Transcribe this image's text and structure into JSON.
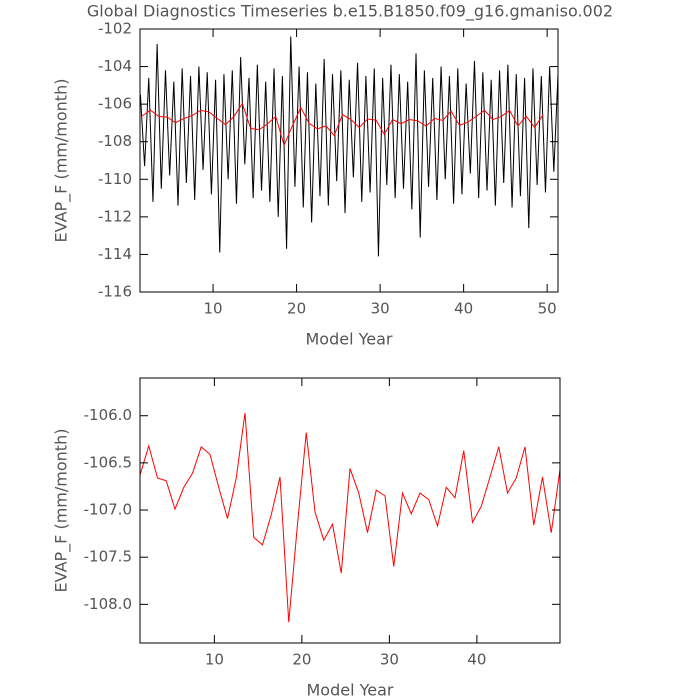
{
  "chart_data": [
    {
      "type": "line",
      "title": "Global Diagnostics Timeseries b.e15.B1850.f09_g16.gmaniso.002",
      "x_label": "Model Year",
      "y_label": "EVAP_F (mm/month)",
      "xlim": [
        1.25,
        51.3
      ],
      "ylim": [
        -116,
        -102
      ],
      "xticks": [
        10,
        20,
        30,
        40,
        50
      ],
      "yticks": [
        -116,
        -114,
        -112,
        -110,
        -108,
        -106,
        -104,
        -102
      ],
      "series": [
        {
          "color": "#000000",
          "x": [
            1.3,
            1.8,
            2.3,
            2.8,
            3.3,
            3.8,
            4.3,
            4.8,
            5.3,
            5.8,
            6.3,
            6.8,
            7.3,
            7.8,
            8.3,
            8.8,
            9.3,
            9.8,
            10.3,
            10.8,
            11.3,
            11.8,
            12.3,
            12.8,
            13.3,
            13.8,
            14.3,
            14.8,
            15.3,
            15.8,
            16.3,
            16.8,
            17.3,
            17.8,
            18.3,
            18.8,
            19.3,
            19.8,
            20.3,
            20.8,
            21.3,
            21.8,
            22.3,
            22.8,
            23.3,
            23.8,
            24.3,
            24.8,
            25.3,
            25.8,
            26.3,
            26.8,
            27.3,
            27.8,
            28.3,
            28.8,
            29.3,
            29.8,
            30.3,
            30.8,
            31.3,
            31.8,
            32.3,
            32.8,
            33.3,
            33.8,
            34.3,
            34.8,
            35.3,
            35.8,
            36.3,
            36.8,
            37.3,
            37.8,
            38.3,
            38.8,
            39.3,
            39.8,
            40.3,
            40.8,
            41.3,
            41.8,
            42.3,
            42.8,
            43.3,
            43.8,
            44.3,
            44.8,
            45.3,
            45.8,
            46.3,
            46.8,
            47.3,
            47.8,
            48.3,
            48.8,
            49.3,
            49.8,
            50.3,
            50.8,
            51.3
          ],
          "values": [
            -105.5,
            -109.3,
            -104.6,
            -111.2,
            -102.8,
            -110.5,
            -104.2,
            -109.8,
            -104.8,
            -111.4,
            -104.1,
            -110.2,
            -104.5,
            -111.1,
            -104.0,
            -109.5,
            -104.3,
            -110.8,
            -104.7,
            -113.9,
            -104.4,
            -110.0,
            -104.2,
            -111.3,
            -103.5,
            -109.2,
            -104.6,
            -111.0,
            -103.9,
            -110.6,
            -104.8,
            -111.2,
            -104.1,
            -112.0,
            -104.5,
            -113.7,
            -102.4,
            -110.4,
            -104.0,
            -111.5,
            -104.3,
            -112.3,
            -104.9,
            -110.9,
            -103.6,
            -111.4,
            -104.4,
            -110.1,
            -104.2,
            -111.8,
            -104.7,
            -109.9,
            -103.8,
            -111.2,
            -104.5,
            -110.7,
            -104.1,
            -114.1,
            -104.6,
            -110.3,
            -103.9,
            -111.0,
            -104.4,
            -110.5,
            -104.8,
            -111.6,
            -103.3,
            -113.1,
            -104.2,
            -110.4,
            -104.6,
            -111.1,
            -104.0,
            -110.0,
            -104.5,
            -111.3,
            -104.1,
            -110.8,
            -104.9,
            -109.7,
            -103.7,
            -111.0,
            -104.3,
            -110.6,
            -104.7,
            -111.4,
            -104.2,
            -110.2,
            -103.9,
            -111.5,
            -104.4,
            -110.9,
            -104.6,
            -112.6,
            -104.1,
            -110.3,
            -104.5,
            -110.7,
            -104.0,
            -109.6,
            -104.4
          ]
        },
        {
          "color": "#ff0000",
          "x": [
            1.5,
            2.5,
            3.5,
            4.5,
            5.5,
            6.5,
            7.5,
            8.5,
            9.5,
            10.5,
            11.5,
            12.5,
            13.5,
            14.5,
            15.5,
            16.5,
            17.5,
            18.5,
            19.5,
            20.5,
            21.5,
            22.5,
            23.5,
            24.5,
            25.5,
            26.5,
            27.5,
            28.5,
            29.5,
            30.5,
            31.5,
            32.5,
            33.5,
            34.5,
            35.5,
            36.5,
            37.5,
            38.5,
            39.5,
            40.5,
            41.5,
            42.5,
            43.5,
            44.5,
            45.5,
            46.5,
            47.5,
            48.5,
            49.5
          ],
          "values": [
            -106.63,
            -106.32,
            -106.66,
            -106.69,
            -106.99,
            -106.76,
            -106.61,
            -106.33,
            -106.41,
            -106.76,
            -107.09,
            -106.66,
            -105.97,
            -107.29,
            -107.37,
            -107.05,
            -106.65,
            -108.19,
            -107.15,
            -106.18,
            -107.02,
            -107.32,
            -107.15,
            -107.67,
            -106.56,
            -106.82,
            -107.24,
            -106.79,
            -106.85,
            -107.6,
            -106.82,
            -107.04,
            -106.82,
            -106.89,
            -107.17,
            -106.76,
            -106.87,
            -106.37,
            -107.13,
            -106.96,
            -106.65,
            -106.33,
            -106.82,
            -106.66,
            -106.33,
            -107.16,
            -106.65,
            -107.24,
            -106.57
          ]
        }
      ]
    },
    {
      "type": "line",
      "x_label": "Model Year",
      "y_label": "EVAP_F (mm/month)",
      "xlim": [
        1.5,
        49.5
      ],
      "ylim": [
        -108.41,
        -105.6
      ],
      "xticks": [
        10,
        20,
        30,
        40
      ],
      "yticks": [
        {
          "value": -108,
          "label": "-108.0"
        },
        -107.5,
        {
          "value": -107,
          "label": "-107.0"
        },
        -106.5,
        {
          "value": -106,
          "label": "-106.0"
        }
      ],
      "series": [
        {
          "color": "#ff0000",
          "x": [
            1.5,
            2.5,
            3.5,
            4.5,
            5.5,
            6.5,
            7.5,
            8.5,
            9.5,
            10.5,
            11.5,
            12.5,
            13.5,
            14.5,
            15.5,
            16.5,
            17.5,
            18.5,
            19.5,
            20.5,
            21.5,
            22.5,
            23.5,
            24.5,
            25.5,
            26.5,
            27.5,
            28.5,
            29.5,
            30.5,
            31.5,
            32.5,
            33.5,
            34.5,
            35.5,
            36.5,
            37.5,
            38.5,
            39.5,
            40.5,
            41.5,
            42.5,
            43.5,
            44.5,
            45.5,
            46.5,
            47.5,
            48.5,
            49.5
          ],
          "values": [
            -106.63,
            -106.32,
            -106.66,
            -106.69,
            -106.99,
            -106.76,
            -106.61,
            -106.33,
            -106.41,
            -106.76,
            -107.09,
            -106.66,
            -105.97,
            -107.29,
            -107.37,
            -107.05,
            -106.65,
            -108.19,
            -107.15,
            -106.18,
            -107.02,
            -107.32,
            -107.15,
            -107.67,
            -106.56,
            -106.82,
            -107.24,
            -106.79,
            -106.85,
            -107.6,
            -106.82,
            -107.04,
            -106.82,
            -106.89,
            -107.17,
            -106.76,
            -106.87,
            -106.37,
            -107.13,
            -106.96,
            -106.65,
            -106.33,
            -106.82,
            -106.66,
            -106.33,
            -107.16,
            -106.65,
            -107.24,
            -106.57
          ]
        }
      ]
    }
  ]
}
